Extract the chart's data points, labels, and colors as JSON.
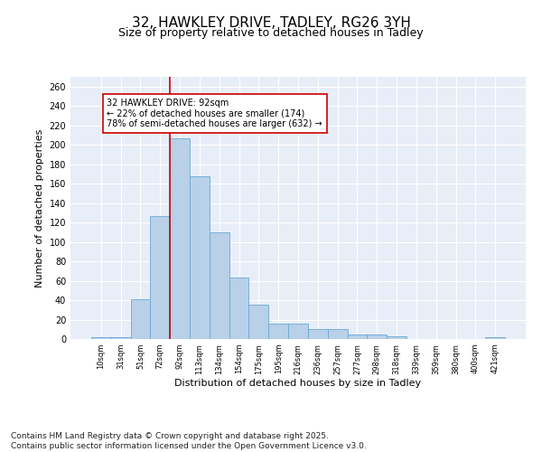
{
  "title1": "32, HAWKLEY DRIVE, TADLEY, RG26 3YH",
  "title2": "Size of property relative to detached houses in Tadley",
  "xlabel": "Distribution of detached houses by size in Tadley",
  "ylabel": "Number of detached properties",
  "categories": [
    "10sqm",
    "31sqm",
    "51sqm",
    "72sqm",
    "92sqm",
    "113sqm",
    "134sqm",
    "154sqm",
    "175sqm",
    "195sqm",
    "216sqm",
    "236sqm",
    "257sqm",
    "277sqm",
    "298sqm",
    "318sqm",
    "339sqm",
    "359sqm",
    "380sqm",
    "400sqm",
    "421sqm"
  ],
  "values": [
    2,
    2,
    41,
    127,
    207,
    168,
    110,
    63,
    35,
    16,
    16,
    10,
    10,
    5,
    5,
    3,
    0,
    0,
    0,
    0,
    2
  ],
  "bar_color": "#b8d0e8",
  "bar_edge_color": "#6aaad4",
  "vline_color": "#cc0000",
  "annotation_text": "32 HAWKLEY DRIVE: 92sqm\n← 22% of detached houses are smaller (174)\n78% of semi-detached houses are larger (632) →",
  "annotation_box_color": "#cc0000",
  "ylim": [
    0,
    270
  ],
  "yticks": [
    0,
    20,
    40,
    60,
    80,
    100,
    120,
    140,
    160,
    180,
    200,
    220,
    240,
    260
  ],
  "background_color": "#e8eef8",
  "footer_text": "Contains HM Land Registry data © Crown copyright and database right 2025.\nContains public sector information licensed under the Open Government Licence v3.0.",
  "title1_fontsize": 11,
  "title2_fontsize": 9,
  "annotation_fontsize": 7,
  "axis_label_fontsize": 8,
  "tick_fontsize": 7,
  "xtick_fontsize": 6,
  "footer_fontsize": 6.5
}
